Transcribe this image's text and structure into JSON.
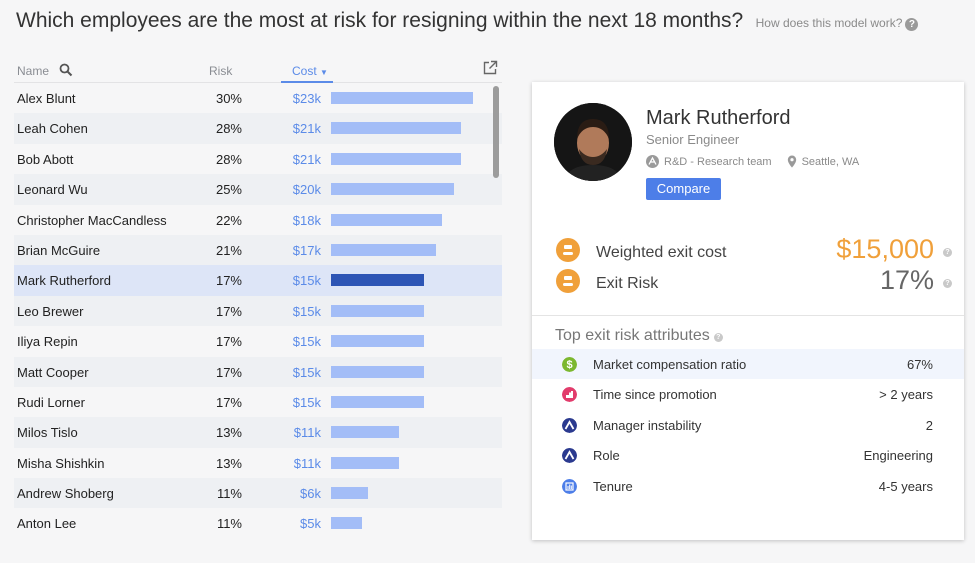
{
  "header": {
    "question": "Which employees are the most at risk for resigning within the next 18 months?",
    "help_link": "How does this model work?"
  },
  "table": {
    "columns": {
      "name": "Name",
      "risk": "Risk",
      "cost": "Cost"
    },
    "rows": [
      {
        "name": "Alex Blunt",
        "risk": "30%",
        "cost": "$23k",
        "cost_value": 23
      },
      {
        "name": "Leah Cohen",
        "risk": "28%",
        "cost": "$21k",
        "cost_value": 21
      },
      {
        "name": "Bob Abott",
        "risk": "28%",
        "cost": "$21k",
        "cost_value": 21
      },
      {
        "name": "Leonard Wu",
        "risk": "25%",
        "cost": "$20k",
        "cost_value": 20
      },
      {
        "name": "Christopher MacCandless",
        "risk": "22%",
        "cost": "$18k",
        "cost_value": 18
      },
      {
        "name": "Brian McGuire",
        "risk": "21%",
        "cost": "$17k",
        "cost_value": 17
      },
      {
        "name": "Mark Rutherford",
        "risk": "17%",
        "cost": "$15k",
        "cost_value": 15,
        "selected": true
      },
      {
        "name": "Leo Brewer",
        "risk": "17%",
        "cost": "$15k",
        "cost_value": 15
      },
      {
        "name": "Iliya Repin",
        "risk": "17%",
        "cost": "$15k",
        "cost_value": 15
      },
      {
        "name": "Matt Cooper",
        "risk": "17%",
        "cost": "$15k",
        "cost_value": 15
      },
      {
        "name": "Rudi Lorner",
        "risk": "17%",
        "cost": "$15k",
        "cost_value": 15
      },
      {
        "name": "Milos Tislo",
        "risk": "13%",
        "cost": "$11k",
        "cost_value": 11
      },
      {
        "name": "Misha Shishkin",
        "risk": "13%",
        "cost": "$11k",
        "cost_value": 11
      },
      {
        "name": "Andrew Shoberg",
        "risk": "11%",
        "cost": "$6k",
        "cost_value": 6
      },
      {
        "name": "Anton Lee",
        "risk": "11%",
        "cost": "$5k",
        "cost_value": 5
      }
    ],
    "bar_color": "#a3bdf7",
    "selected_bar_color": "#2d55b5"
  },
  "profile": {
    "name": "Mark Rutherford",
    "title": "Senior Engineer",
    "team": "R&D - Research team",
    "location": "Seattle, WA",
    "compare_label": "Compare",
    "weighted_exit_cost_label": "Weighted exit cost",
    "weighted_exit_cost": "$15,000",
    "exit_risk_label": "Exit Risk",
    "exit_risk": "17%"
  },
  "attributes": {
    "title": "Top exit risk attributes",
    "items": [
      {
        "label": "Market compensation ratio",
        "value": "67%",
        "icon": "dollar-icon",
        "color": "#7cb82f"
      },
      {
        "label": "Time since promotion",
        "value": "> 2 years",
        "icon": "promotion-icon",
        "color": "#e23c6c"
      },
      {
        "label": "Manager instability",
        "value": "2",
        "icon": "manager-icon",
        "color": "#2b3a8f"
      },
      {
        "label": "Role",
        "value": "Engineering",
        "icon": "role-icon",
        "color": "#2b3a8f"
      },
      {
        "label": "Tenure",
        "value": "4-5 years",
        "icon": "tenure-icon",
        "color": "#4d7ee8"
      }
    ]
  }
}
